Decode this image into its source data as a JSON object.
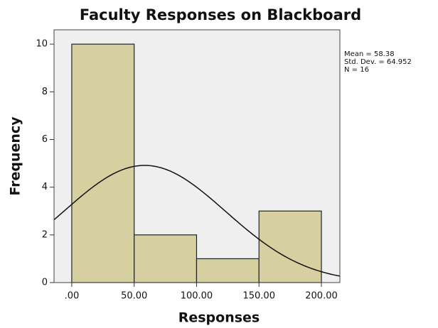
{
  "chart_data": {
    "type": "histogram",
    "title": "Faculty Responses on Blackboard",
    "x_label": "Responses",
    "y_label": "Frequency",
    "bins": [
      0,
      50,
      100,
      150,
      200
    ],
    "values": [
      10,
      2,
      1,
      3
    ],
    "color": "#d6cfa0",
    "xlim": [
      -14.2,
      214.8
    ],
    "xticks": [
      {
        "value": 0,
        "label": ".00"
      },
      {
        "value": 50,
        "label": "50.00"
      },
      {
        "value": 100,
        "label": "100.00"
      },
      {
        "value": 150,
        "label": "150.00"
      },
      {
        "value": 200,
        "label": "200.00"
      }
    ],
    "ylim": [
      0,
      10.6
    ],
    "yticks": [
      0,
      2,
      4,
      6,
      8,
      10
    ],
    "stats": [
      {
        "label": "Mean = 58.38",
        "value": 58.38
      },
      {
        "label": "Std. Dev. = 64.952",
        "value": 64.952
      },
      {
        "label": "N = 16",
        "value": 16
      }
    ],
    "curve_color": "#111111"
  }
}
